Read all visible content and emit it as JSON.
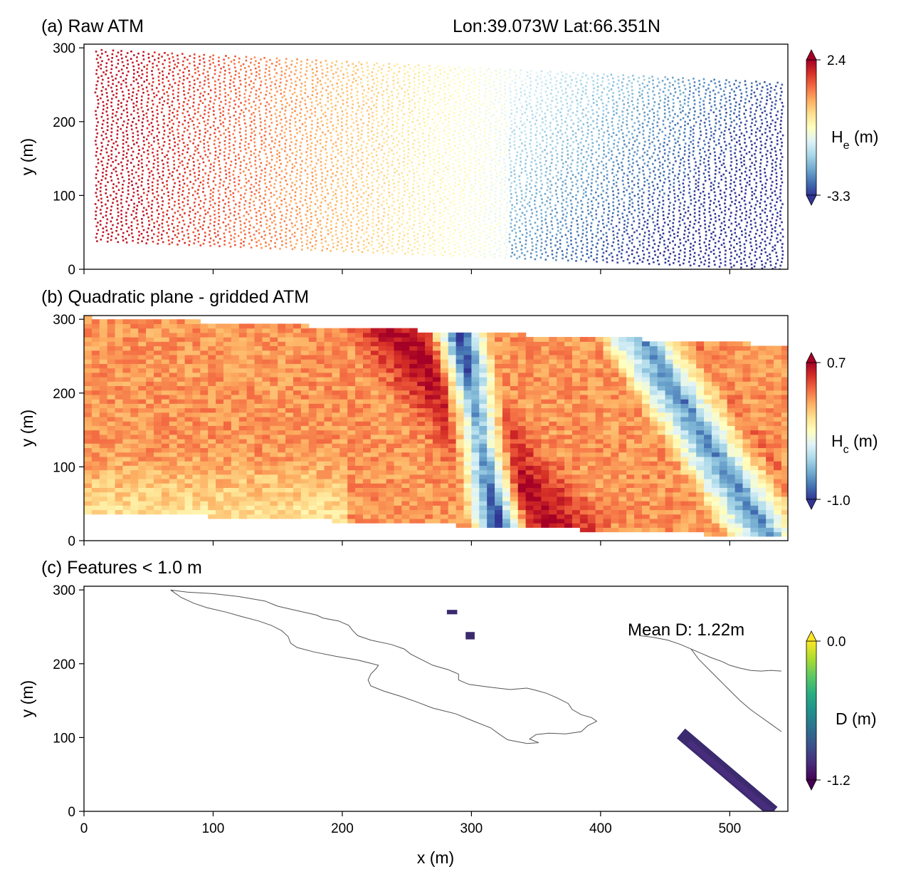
{
  "chart_data": [
    {
      "type": "heatmap",
      "panel": "a",
      "title": "(a) Raw ATM",
      "annotation": "Lon:39.073W Lat:66.351N",
      "xlabel": "",
      "ylabel": "y (m)",
      "xlim": [
        0,
        545
      ],
      "ylim": [
        0,
        305
      ],
      "xticks": [
        0,
        100,
        200,
        300,
        400,
        500
      ],
      "xticklabels": [
        "",
        "",
        "",
        "",
        "",
        ""
      ],
      "yticks": [
        0,
        100,
        200,
        300
      ],
      "yticklabels": [
        "0",
        "100",
        "200",
        "300"
      ],
      "colorbar": {
        "label_main": "H",
        "label_sub": "e",
        "label_unit": " (m)",
        "min": -3.3,
        "max": 2.4,
        "min_label": "-3.3",
        "max_label": "2.4",
        "colormap": "RdYlBu_r",
        "extend": "both"
      },
      "swath": {
        "left_x": 10,
        "left_bottom_y": 38,
        "left_top_y": 300,
        "right_x": 540,
        "right_bottom_y": 0,
        "right_top_y": 255
      },
      "data_description": "scatter points, elevation decreasing from west (2.4 m) to east (-3.3 m)"
    },
    {
      "type": "heatmap",
      "panel": "b",
      "title": "(b) Quadratic plane - gridded ATM",
      "xlabel": "",
      "ylabel": "y (m)",
      "xlim": [
        0,
        545
      ],
      "ylim": [
        0,
        305
      ],
      "xticks": [
        0,
        100,
        200,
        300,
        400,
        500
      ],
      "xticklabels": [
        "",
        "",
        "",
        "",
        "",
        ""
      ],
      "yticks": [
        0,
        100,
        200,
        300
      ],
      "yticklabels": [
        "0",
        "100",
        "200",
        "300"
      ],
      "colorbar": {
        "label_main": "H",
        "label_sub": "c",
        "label_unit": " (m)",
        "min": -1.0,
        "max": 0.7,
        "min_label": "-1.0",
        "max_label": "0.7",
        "colormap": "RdYlBu_r",
        "extend": "both"
      },
      "swath": {
        "left_x": 0,
        "left_bottom_y": 36,
        "left_top_y": 300,
        "right_x": 540,
        "right_bottom_y": 2,
        "right_top_y": 262
      },
      "ridges": [
        {
          "x0": 230,
          "x1": 370,
          "value": 0.7,
          "width": 45
        },
        {
          "x0": 430,
          "x1": 540,
          "value": 0.7,
          "width": 35
        }
      ],
      "troughs": [
        {
          "x0": 285,
          "x1": 320,
          "value": -1.0,
          "width": 10
        },
        {
          "x0": 420,
          "x1": 530,
          "value": -1.0,
          "width": 15
        }
      ]
    },
    {
      "type": "heatmap",
      "panel": "c",
      "title": "(c) Features < 1.0 m",
      "annotation": "Mean D: 1.22m",
      "xlabel": "x (m)",
      "ylabel": "y (m)",
      "xlim": [
        0,
        545
      ],
      "ylim": [
        0,
        305
      ],
      "xticks": [
        0,
        100,
        200,
        300,
        400,
        500
      ],
      "xticklabels": [
        "0",
        "100",
        "200",
        "300",
        "400",
        "500"
      ],
      "yticks": [
        0,
        100,
        200,
        300
      ],
      "yticklabels": [
        "0",
        "100",
        "200",
        "300"
      ],
      "colorbar": {
        "label_main": "D (m)",
        "label_sub": "",
        "label_unit": "",
        "min": -1.2,
        "max": 0.0,
        "min_label": "-1.2",
        "max_label": "0.0",
        "colormap": "viridis",
        "extend": "both"
      },
      "contour_1": [
        [
          67,
          300
        ],
        [
          80,
          297
        ],
        [
          100,
          295
        ],
        [
          120,
          291
        ],
        [
          140,
          285
        ],
        [
          150,
          278
        ],
        [
          165,
          272
        ],
        [
          180,
          266
        ],
        [
          185,
          262
        ],
        [
          197,
          258
        ],
        [
          205,
          252
        ],
        [
          208,
          245
        ],
        [
          212,
          238
        ],
        [
          222,
          232
        ],
        [
          238,
          226
        ],
        [
          248,
          220
        ],
        [
          253,
          213
        ],
        [
          262,
          205
        ],
        [
          270,
          198
        ],
        [
          282,
          192
        ],
        [
          290,
          186
        ],
        [
          290,
          178
        ],
        [
          298,
          172
        ],
        [
          315,
          168
        ],
        [
          330,
          165
        ],
        [
          343,
          167
        ],
        [
          350,
          164
        ],
        [
          358,
          160
        ],
        [
          366,
          154
        ],
        [
          375,
          146
        ],
        [
          378,
          138
        ],
        [
          385,
          131
        ],
        [
          393,
          127
        ],
        [
          397,
          122
        ],
        [
          390,
          116
        ],
        [
          385,
          108
        ],
        [
          373,
          105
        ],
        [
          360,
          106
        ],
        [
          350,
          104
        ],
        [
          345,
          98
        ],
        [
          352,
          93
        ],
        [
          343,
          92
        ],
        [
          328,
          97
        ],
        [
          322,
          104
        ],
        [
          315,
          113
        ],
        [
          302,
          122
        ],
        [
          288,
          132
        ],
        [
          270,
          140
        ],
        [
          258,
          148
        ],
        [
          245,
          156
        ],
        [
          232,
          163
        ],
        [
          222,
          170
        ],
        [
          220,
          178
        ],
        [
          222,
          186
        ],
        [
          226,
          193
        ],
        [
          228,
          198
        ],
        [
          212,
          205
        ],
        [
          195,
          210
        ],
        [
          178,
          216
        ],
        [
          165,
          222
        ],
        [
          160,
          228
        ],
        [
          158,
          237
        ],
        [
          153,
          245
        ],
        [
          145,
          252
        ],
        [
          135,
          258
        ],
        [
          122,
          264
        ],
        [
          110,
          270
        ],
        [
          95,
          276
        ],
        [
          85,
          282
        ],
        [
          75,
          290
        ],
        [
          67,
          300
        ]
      ],
      "contour_2": [
        [
          430,
          238
        ],
        [
          440,
          236
        ],
        [
          452,
          232
        ],
        [
          462,
          226
        ],
        [
          470,
          220
        ],
        [
          478,
          214
        ],
        [
          486,
          208
        ],
        [
          494,
          203
        ],
        [
          500,
          198
        ],
        [
          508,
          194
        ],
        [
          516,
          191
        ],
        [
          524,
          190
        ],
        [
          532,
          191
        ],
        [
          540,
          190
        ]
      ],
      "contour_2b": [
        [
          470,
          220
        ],
        [
          476,
          206
        ],
        [
          484,
          192
        ],
        [
          492,
          178
        ],
        [
          500,
          164
        ],
        [
          508,
          150
        ],
        [
          516,
          138
        ],
        [
          524,
          128
        ],
        [
          532,
          118
        ],
        [
          540,
          108
        ]
      ],
      "features": [
        {
          "cx": 285,
          "cy": 270,
          "w": 8,
          "h": 6,
          "value": -1.2
        },
        {
          "cx": 299,
          "cy": 238,
          "w": 7,
          "h": 10,
          "value": -1.2
        },
        {
          "x0": 466,
          "y0": 100,
          "x1": 530,
          "y1": 5,
          "width": 18,
          "value": -1.2
        }
      ]
    }
  ]
}
